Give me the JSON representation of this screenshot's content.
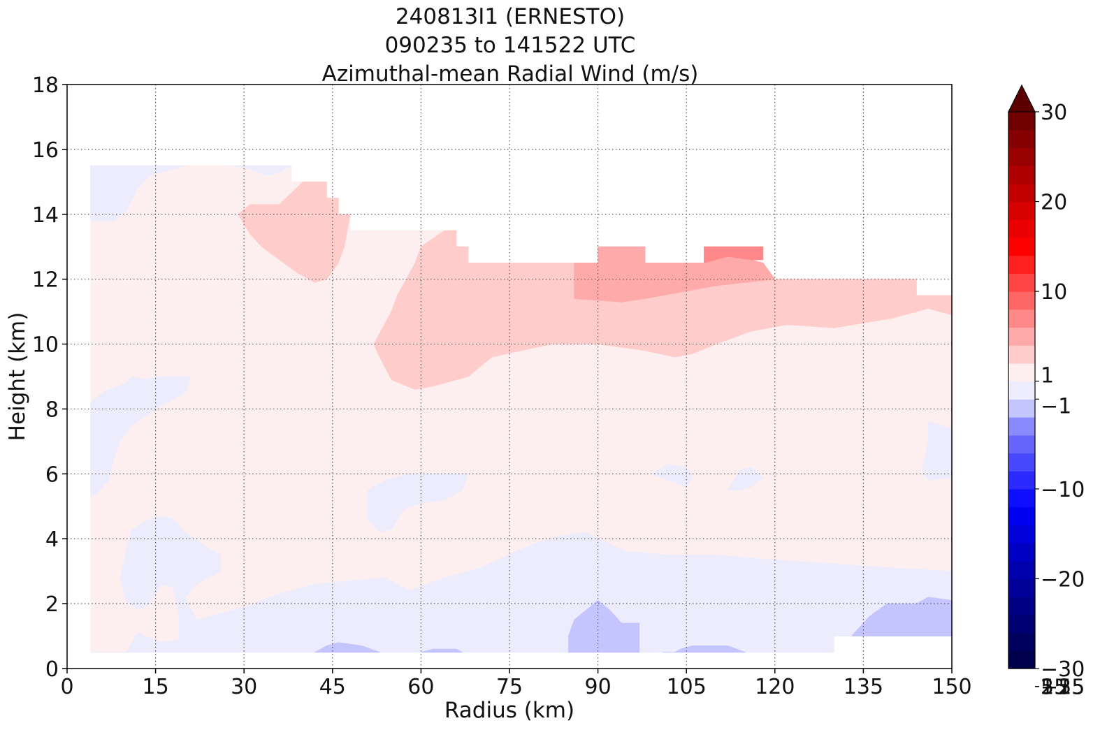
{
  "chart_data": {
    "type": "heatmap",
    "title_lines": [
      "240813I1 (ERNESTO)",
      "090235 to 141522 UTC",
      "Azimuthal-mean Radial Wind (m/s)"
    ],
    "xlabel": "Radius (km)",
    "ylabel": "Height (km)",
    "xlim": [
      0,
      150
    ],
    "ylim": [
      0,
      18
    ],
    "x_ticks": [
      0,
      15,
      30,
      45,
      60,
      75,
      90,
      105,
      120,
      135,
      150
    ],
    "y_ticks": [
      0,
      2,
      4,
      6,
      8,
      10,
      12,
      14,
      16,
      18
    ],
    "grid": true,
    "colorbar": {
      "range": [
        -30,
        30
      ],
      "extend": "max",
      "tick_values": [
        -30,
        -25,
        -20,
        -15,
        -10,
        -5,
        -1,
        1,
        5,
        10,
        15,
        20,
        25,
        30
      ],
      "tick_labels": [
        "−30",
        "−25",
        "−20",
        "−15",
        "−10",
        "−5",
        "−1",
        "1",
        "5",
        "10",
        "15",
        "20",
        "25",
        "30"
      ],
      "levels": [
        -30,
        -28,
        -26,
        -24,
        -22,
        -20,
        -18,
        -16,
        -14,
        -12,
        -10,
        -8,
        -6,
        -4,
        -2,
        -1,
        1,
        2,
        4,
        6,
        8,
        10,
        12,
        14,
        16,
        18,
        20,
        22,
        24,
        26,
        28,
        30
      ],
      "colors": [
        "#00004d",
        "#00005f",
        "#000072",
        "#000085",
        "#000099",
        "#0000ad",
        "#0000c2",
        "#0000d9",
        "#0000f0",
        "#0f0fff",
        "#2b2bff",
        "#4848ff",
        "#6666ff",
        "#8a8aff",
        "#c4c4ff",
        "#ececfd",
        "#fdefef",
        "#ffcccc",
        "#ffaaaa",
        "#ff8888",
        "#ff6666",
        "#ff4444",
        "#ff2020",
        "#ff0000",
        "#ea0000",
        "#d60000",
        "#c20000",
        "#ae0000",
        "#990000",
        "#850000",
        "#700000"
      ],
      "extend_color": "#5c0000"
    },
    "fill_regions": [
      {
        "value_range": [
          1,
          2
        ],
        "color": "#fdefef",
        "points": [
          [
            4,
            0.5
          ],
          [
            130,
            0.5
          ],
          [
            130,
            1
          ],
          [
            150,
            1
          ],
          [
            150,
            11.5
          ],
          [
            144,
            11.5
          ],
          [
            144,
            12
          ],
          [
            118,
            12
          ],
          [
            118,
            12.5
          ],
          [
            68,
            12.5
          ],
          [
            68,
            13
          ],
          [
            66,
            13
          ],
          [
            66,
            13.5
          ],
          [
            48,
            13.5
          ],
          [
            48,
            14
          ],
          [
            46,
            14
          ],
          [
            46,
            14.5
          ],
          [
            44,
            14.5
          ],
          [
            44,
            15
          ],
          [
            38,
            15
          ],
          [
            38,
            15.5
          ],
          [
            4,
            15.5
          ]
        ]
      },
      {
        "value_range": [
          2,
          4
        ],
        "color": "#ffcccc",
        "points": [
          [
            52,
            10
          ],
          [
            55,
            11
          ],
          [
            56,
            11.5
          ],
          [
            59,
            12.5
          ],
          [
            60,
            13
          ],
          [
            64,
            13.5
          ],
          [
            66,
            13.5
          ],
          [
            66,
            13
          ],
          [
            68,
            13
          ],
          [
            68,
            12.5
          ],
          [
            118,
            12.5
          ],
          [
            118,
            12
          ],
          [
            144,
            12
          ],
          [
            144,
            11.5
          ],
          [
            150,
            11.5
          ],
          [
            150,
            10.9
          ],
          [
            146,
            11.1
          ],
          [
            140,
            10.8
          ],
          [
            130,
            10.5
          ],
          [
            122,
            10.6
          ],
          [
            116,
            10.4
          ],
          [
            110,
            10
          ],
          [
            106,
            9.7
          ],
          [
            103,
            9.6
          ],
          [
            98,
            9.8
          ],
          [
            90,
            10
          ],
          [
            82,
            10
          ],
          [
            72,
            9.6
          ],
          [
            68,
            9
          ],
          [
            62,
            8.7
          ],
          [
            59,
            8.6
          ],
          [
            55,
            8.9
          ],
          [
            53,
            9.6
          ]
        ]
      },
      {
        "value_range": [
          2,
          4
        ],
        "color": "#ffcccc",
        "points": [
          [
            29,
            14
          ],
          [
            31,
            14.3
          ],
          [
            36,
            14.3
          ],
          [
            40,
            15
          ],
          [
            44,
            15
          ],
          [
            44,
            14.5
          ],
          [
            46,
            14.5
          ],
          [
            46,
            14
          ],
          [
            48,
            14
          ],
          [
            47,
            13
          ],
          [
            46,
            12.5
          ],
          [
            44,
            12
          ],
          [
            42,
            11.9
          ],
          [
            39,
            12.2
          ],
          [
            36,
            12.6
          ],
          [
            33,
            13
          ],
          [
            31,
            13.4
          ]
        ]
      },
      {
        "value_range": [
          4,
          6
        ],
        "color": "#ffaaaa",
        "points": [
          [
            86,
            12.5
          ],
          [
            90,
            12.5
          ],
          [
            90,
            13
          ],
          [
            98,
            13
          ],
          [
            98,
            12.5
          ],
          [
            108,
            12.5
          ],
          [
            108,
            12.6
          ],
          [
            112,
            12.7
          ],
          [
            116,
            12.6
          ],
          [
            118,
            12.5
          ],
          [
            120,
            12
          ],
          [
            110,
            11.8
          ],
          [
            104,
            11.6
          ],
          [
            98,
            11.4
          ],
          [
            94,
            11.3
          ],
          [
            86,
            11.4
          ]
        ]
      },
      {
        "value_range": [
          6,
          8
        ],
        "color": "#ff8888",
        "points": [
          [
            108,
            12.5
          ],
          [
            108,
            13
          ],
          [
            118,
            13
          ],
          [
            118,
            12.6
          ],
          [
            116,
            12.6
          ],
          [
            112,
            12.7
          ],
          [
            110,
            12.6
          ]
        ]
      },
      {
        "value_range": [
          -1,
          1
        ],
        "color": "#ececfd",
        "points": [
          [
            4,
            15.5
          ],
          [
            20,
            15.5
          ],
          [
            14,
            15.2
          ],
          [
            12,
            14.8
          ],
          [
            10,
            14.1
          ],
          [
            8,
            13.8
          ],
          [
            4,
            13.8
          ]
        ]
      },
      {
        "value_range": [
          -1,
          1
        ],
        "color": "#ececfd",
        "points": [
          [
            28,
            15.5
          ],
          [
            38,
            15.5
          ],
          [
            36,
            15.3
          ],
          [
            34,
            15.2
          ],
          [
            31,
            15.4
          ]
        ]
      },
      {
        "value_range": [
          -1,
          1
        ],
        "color": "#ececfd",
        "points": [
          [
            4,
            8.2
          ],
          [
            6,
            8.5
          ],
          [
            10,
            8.8
          ],
          [
            11,
            9
          ],
          [
            13,
            8.9
          ],
          [
            16,
            9
          ],
          [
            21,
            9
          ],
          [
            20,
            8.5
          ],
          [
            15,
            8
          ],
          [
            11,
            7.5
          ],
          [
            9,
            7
          ],
          [
            8,
            6.5
          ],
          [
            7,
            5.8
          ],
          [
            5,
            5.4
          ],
          [
            4,
            5.3
          ]
        ]
      },
      {
        "value_range": [
          -1,
          1
        ],
        "color": "#ececfd",
        "points": [
          [
            51,
            5.5
          ],
          [
            54,
            5.8
          ],
          [
            58,
            6
          ],
          [
            64,
            6
          ],
          [
            68,
            6
          ],
          [
            67,
            5.5
          ],
          [
            64,
            5.2
          ],
          [
            60,
            5.1
          ],
          [
            57,
            4.9
          ],
          [
            55,
            4.3
          ],
          [
            53,
            4.2
          ],
          [
            51,
            4.6
          ]
        ]
      },
      {
        "value_range": [
          -1,
          1
        ],
        "color": "#ececfd",
        "points": [
          [
            4,
            0.5
          ],
          [
            130,
            0.5
          ],
          [
            130,
            1
          ],
          [
            150,
            1
          ],
          [
            150,
            3
          ],
          [
            140,
            3.1
          ],
          [
            132,
            3.2
          ],
          [
            124,
            3.3
          ],
          [
            116,
            3.4
          ],
          [
            110,
            3.5
          ],
          [
            102,
            3.5
          ],
          [
            95,
            3.6
          ],
          [
            90,
            4
          ],
          [
            88,
            4.2
          ],
          [
            84,
            4.1
          ],
          [
            80,
            3.9
          ],
          [
            76,
            3.6
          ],
          [
            70,
            3.1
          ],
          [
            64,
            2.8
          ],
          [
            58,
            2.4
          ],
          [
            54,
            2.8
          ],
          [
            48,
            2.7
          ],
          [
            42,
            2.6
          ],
          [
            36,
            2.3
          ],
          [
            30,
            1.9
          ],
          [
            22,
            1.5
          ],
          [
            20,
            2.2
          ],
          [
            22,
            2.6
          ],
          [
            26,
            3
          ],
          [
            26,
            3.5
          ],
          [
            24,
            3.7
          ],
          [
            20,
            4.2
          ],
          [
            18,
            4.6
          ],
          [
            16,
            4.7
          ],
          [
            14,
            4.6
          ],
          [
            11,
            4.3
          ],
          [
            10,
            3.6
          ],
          [
            9,
            2.8
          ],
          [
            10,
            2.1
          ],
          [
            12,
            1.8
          ],
          [
            14,
            2
          ],
          [
            16,
            2.6
          ],
          [
            18,
            2.5
          ],
          [
            19,
            1.6
          ],
          [
            19,
            0.9
          ],
          [
            16,
            0.8
          ],
          [
            12,
            1.1
          ],
          [
            10,
            0.5
          ]
        ]
      },
      {
        "value_range": [
          -1,
          1
        ],
        "color": "#ececfd",
        "points": [
          [
            146,
            7.6
          ],
          [
            150,
            7.4
          ],
          [
            150,
            5.9
          ],
          [
            146,
            5.8
          ],
          [
            145,
            6.1
          ],
          [
            146,
            7
          ]
        ]
      },
      {
        "value_range": [
          -1,
          1
        ],
        "color": "#ececfd",
        "points": [
          [
            99,
            6
          ],
          [
            102,
            6.3
          ],
          [
            105,
            6.2
          ],
          [
            106,
            5.9
          ],
          [
            105,
            5.6
          ],
          [
            102,
            5.8
          ]
        ]
      },
      {
        "value_range": [
          -1,
          1
        ],
        "color": "#ececfd",
        "points": [
          [
            112,
            5.5
          ],
          [
            114,
            6.1
          ],
          [
            116,
            6.2
          ],
          [
            118,
            5.9
          ],
          [
            116,
            5.6
          ],
          [
            114,
            5.5
          ]
        ]
      },
      {
        "value_range": [
          -2,
          -1
        ],
        "color": "#c4c4ff",
        "points": [
          [
            85,
            0.5
          ],
          [
            97,
            0.5
          ],
          [
            97,
            1.4
          ],
          [
            94,
            1.4
          ],
          [
            92,
            1.8
          ],
          [
            90,
            2.1
          ],
          [
            88,
            1.8
          ],
          [
            86,
            1.5
          ],
          [
            85,
            1
          ]
        ]
      },
      {
        "value_range": [
          -2,
          -1
        ],
        "color": "#c4c4ff",
        "points": [
          [
            42,
            0.5
          ],
          [
            53,
            0.5
          ],
          [
            50,
            0.7
          ],
          [
            46,
            0.8
          ],
          [
            44,
            0.7
          ]
        ]
      },
      {
        "value_range": [
          -2,
          -1
        ],
        "color": "#c4c4ff",
        "points": [
          [
            62,
            0.6
          ],
          [
            66,
            0.6
          ],
          [
            67,
            0.5
          ],
          [
            60,
            0.5
          ]
        ]
      },
      {
        "value_range": [
          -2,
          -1
        ],
        "color": "#c4c4ff",
        "points": [
          [
            101,
            0.5
          ],
          [
            103,
            0.5
          ],
          [
            104,
            0.6
          ],
          [
            106,
            0.7
          ],
          [
            112,
            0.7
          ],
          [
            115,
            0.5
          ]
        ]
      },
      {
        "value_range": [
          -2,
          -1
        ],
        "color": "#c4c4ff",
        "points": [
          [
            133,
            1
          ],
          [
            150,
            1
          ],
          [
            150,
            2.1
          ],
          [
            146,
            2.2
          ],
          [
            144,
            2
          ],
          [
            139,
            2
          ],
          [
            136,
            1.6
          ]
        ]
      }
    ]
  }
}
